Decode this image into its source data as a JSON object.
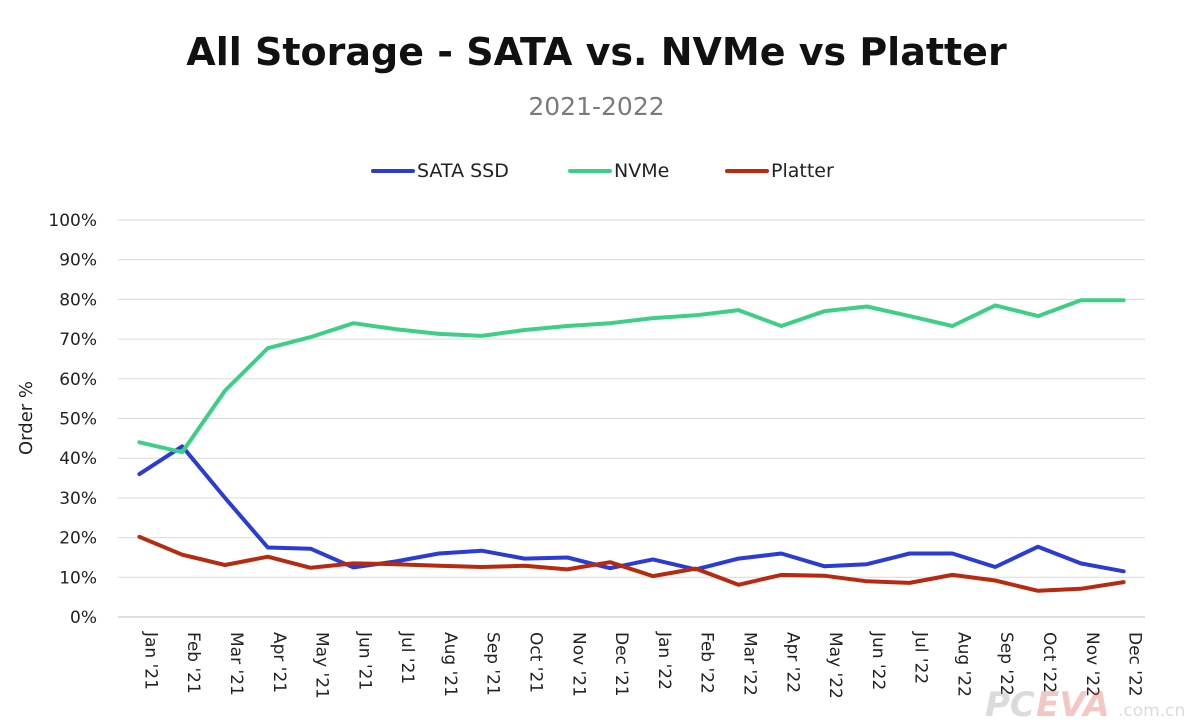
{
  "chart_data": {
    "type": "line",
    "title": "All Storage - SATA vs. NVMe vs Platter",
    "subtitle": "2021-2022",
    "xlabel": "",
    "ylabel": "Order %",
    "ylim": [
      0,
      100
    ],
    "yticks": [
      "0%",
      "10%",
      "20%",
      "30%",
      "40%",
      "50%",
      "60%",
      "70%",
      "80%",
      "90%",
      "100%"
    ],
    "grid": true,
    "legend_position": "top",
    "categories": [
      "Jan '21",
      "Feb '21",
      "Mar '21",
      "Apr '21",
      "May '21",
      "Jun '21",
      "Jul '21",
      "Aug '21",
      "Sep '21",
      "Oct '21",
      "Nov '21",
      "Dec '21",
      "Jan '22",
      "Feb '22",
      "Mar '22",
      "Apr '22",
      "May '22",
      "Jun '22",
      "Jul '22",
      "Aug '22",
      "Sep '22",
      "Oct '22",
      "Nov '22",
      "Dec '22"
    ],
    "series": [
      {
        "name": "SATA SSD",
        "color": "#2b3bd6",
        "values": [
          36,
          43,
          30,
          17.5,
          17.2,
          12.5,
          14,
          16,
          16.7,
          14.7,
          15,
          12.3,
          14.5,
          12,
          14.7,
          16,
          12.8,
          13.3,
          16,
          16,
          12.6,
          17.7,
          13.5,
          11.5
        ]
      },
      {
        "name": "NVMe",
        "color": "#3ecf86",
        "values": [
          44,
          41.5,
          57,
          67.7,
          70.5,
          74,
          72.5,
          71.3,
          70.8,
          72.3,
          73.3,
          74,
          75.3,
          76,
          77.3,
          73.3,
          77,
          78.2,
          75.8,
          73.3,
          78.5,
          75.8,
          79.8,
          79.8
        ]
      },
      {
        "name": "Platter",
        "color": "#b8290f",
        "values": [
          20.2,
          15.7,
          13.1,
          15.2,
          12.4,
          13.5,
          13.3,
          12.9,
          12.6,
          12.9,
          12,
          13.8,
          10.3,
          12.2,
          8.1,
          10.6,
          10.4,
          9,
          8.6,
          10.6,
          9.2,
          6.6,
          7.1,
          8.8
        ]
      }
    ]
  },
  "watermark": "PCEVA.com.cn"
}
